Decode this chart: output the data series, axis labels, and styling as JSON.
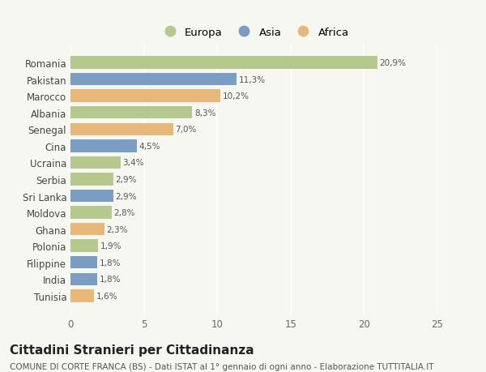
{
  "categories": [
    "Romania",
    "Pakistan",
    "Marocco",
    "Albania",
    "Senegal",
    "Cina",
    "Ucraina",
    "Serbia",
    "Sri Lanka",
    "Moldova",
    "Ghana",
    "Polonia",
    "Filippine",
    "India",
    "Tunisia"
  ],
  "values": [
    20.9,
    11.3,
    10.2,
    8.3,
    7.0,
    4.5,
    3.4,
    2.9,
    2.9,
    2.8,
    2.3,
    1.9,
    1.8,
    1.8,
    1.6
  ],
  "continents": [
    "Europa",
    "Asia",
    "Africa",
    "Europa",
    "Africa",
    "Asia",
    "Europa",
    "Europa",
    "Asia",
    "Europa",
    "Africa",
    "Europa",
    "Asia",
    "Asia",
    "Africa"
  ],
  "labels": [
    "20,9%",
    "11,3%",
    "10,2%",
    "8,3%",
    "7,0%",
    "4,5%",
    "3,4%",
    "2,9%",
    "2,9%",
    "2,8%",
    "2,3%",
    "1,9%",
    "1,8%",
    "1,8%",
    "1,6%"
  ],
  "colors": {
    "Europa": "#b5c98e",
    "Asia": "#7b9dc4",
    "Africa": "#e8b87a"
  },
  "legend_labels": [
    "Europa",
    "Asia",
    "Africa"
  ],
  "xlim": [
    0,
    25
  ],
  "xticks": [
    0,
    5,
    10,
    15,
    20,
    25
  ],
  "title": "Cittadini Stranieri per Cittadinanza",
  "subtitle": "COMUNE DI CORTE FRANCA (BS) - Dati ISTAT al 1° gennaio di ogni anno - Elaborazione TUTTITALIA.IT",
  "background_color": "#f7f7f2",
  "bar_height": 0.75,
  "title_fontsize": 11,
  "subtitle_fontsize": 7.5,
  "label_fontsize": 7.5,
  "tick_fontsize": 8.5,
  "legend_fontsize": 9.5
}
